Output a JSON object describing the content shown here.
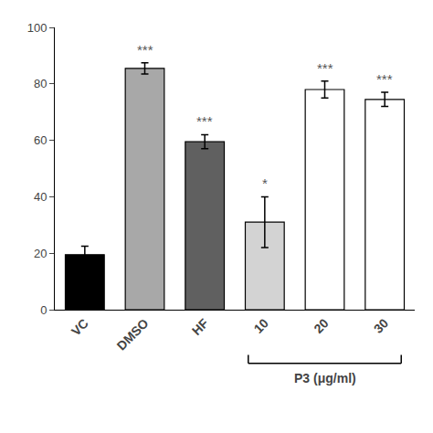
{
  "chart_data": {
    "type": "bar",
    "categories": [
      "VC",
      "DMSO",
      "HF",
      "10",
      "20",
      "30"
    ],
    "values": [
      19.5,
      85.5,
      59.5,
      31.0,
      78.0,
      74.5
    ],
    "errors": [
      3.0,
      2.0,
      2.5,
      9.0,
      3.0,
      2.5
    ],
    "colors": [
      "#000000",
      "#a8a8a8",
      "#606060",
      "#d3d3d3",
      "#ffffff",
      "#ffffff"
    ],
    "ylim": [
      0,
      100
    ],
    "yticks": [
      0,
      20,
      40,
      60,
      80,
      100
    ],
    "grid": false,
    "annotations": [
      {
        "category": "DMSO",
        "text": "***"
      },
      {
        "category": "HF",
        "text": "***"
      },
      {
        "category": "10",
        "text": "*"
      },
      {
        "category": "20",
        "text": "***"
      },
      {
        "category": "30",
        "text": "***"
      }
    ],
    "groups": [
      {
        "categories": [
          "10",
          "20",
          "30"
        ],
        "label": "P3 (μg/ml)"
      }
    ]
  }
}
